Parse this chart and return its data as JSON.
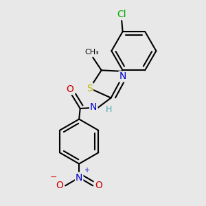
{
  "bg_color": "#e8e8e8",
  "bond_color": "#000000",
  "bond_width": 1.5,
  "atom_colors": {
    "C": "#000000",
    "N": "#0000cc",
    "O": "#cc0000",
    "S": "#b8b800",
    "Cl": "#00aa00",
    "H": "#44aaaa"
  },
  "font_size": 9
}
